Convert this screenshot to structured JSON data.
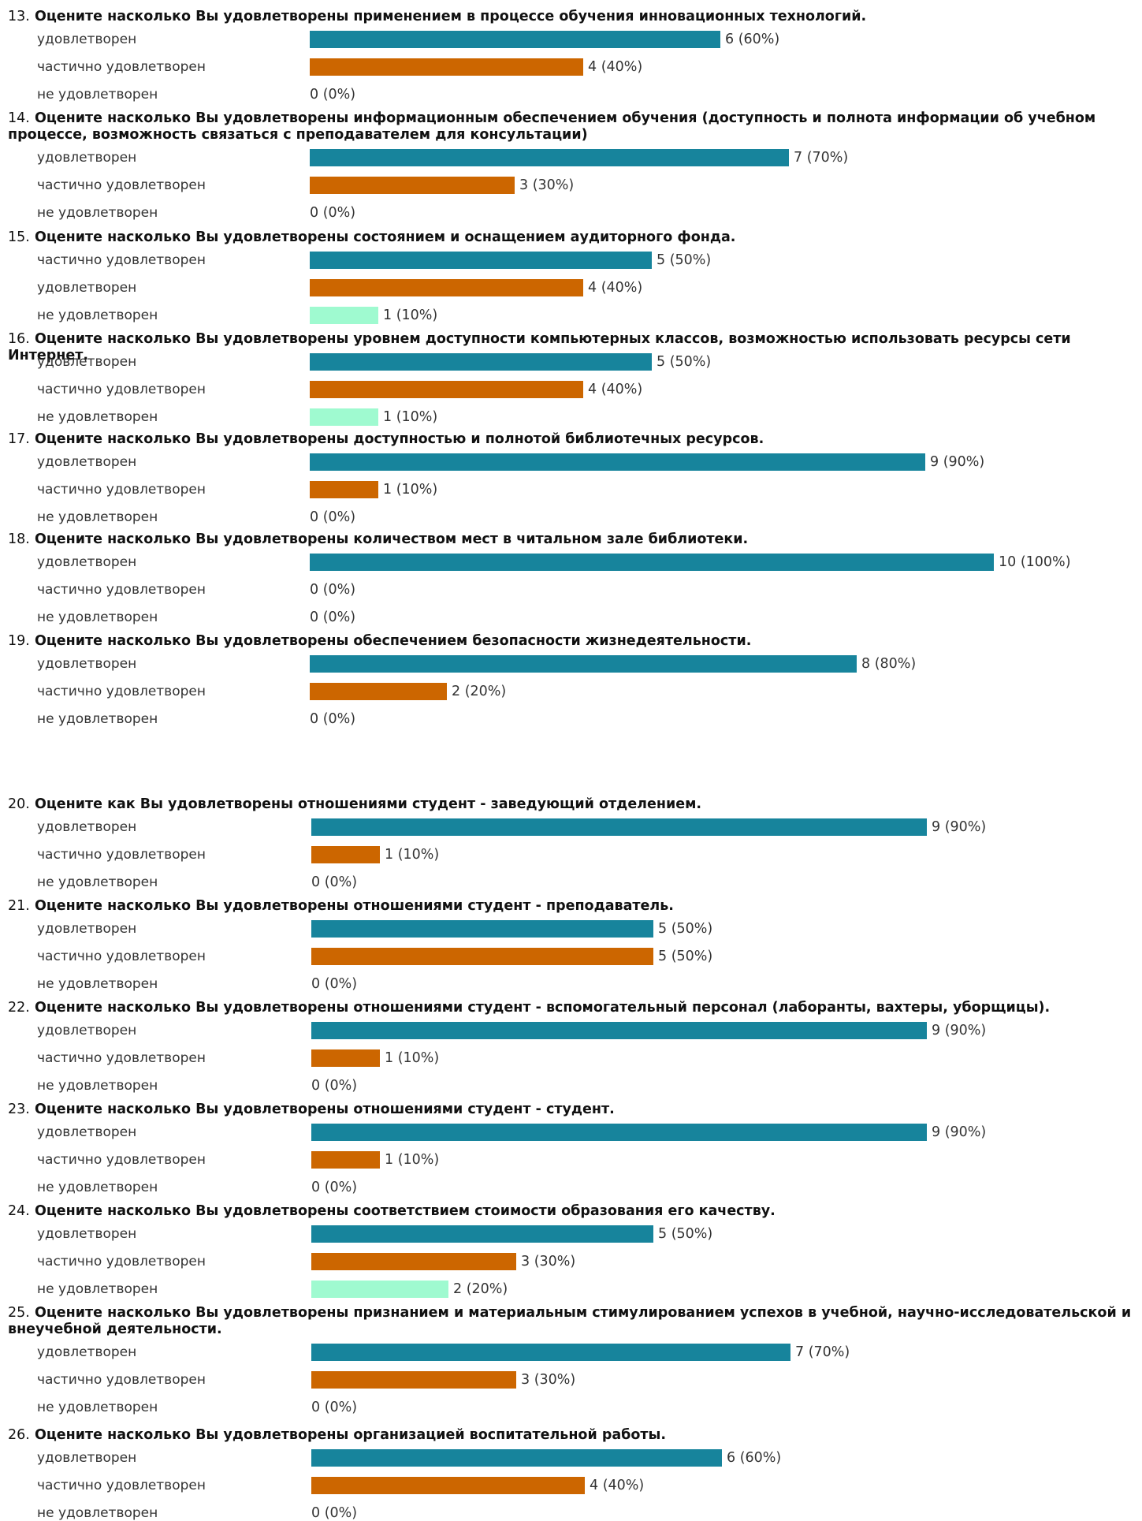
{
  "colors": {
    "bar1": "#17849c",
    "bar2": "#cc6600",
    "bar3": "#9ffad0"
  },
  "chart_data": {
    "type": "bar",
    "orientation": "horizontal",
    "max_value": 10,
    "questions": [
      {
        "number": "13.",
        "title": "Оцените насколько Вы удовлетворены применением в процессе обучения инновационных технологий.",
        "title_lines": 1,
        "options": [
          {
            "label": "удовлетворен",
            "value": 6,
            "value_text": "6 (60%)"
          },
          {
            "label": "частично удовлетворен",
            "value": 4,
            "value_text": "4 (40%)"
          },
          {
            "label": "не удовлетворен",
            "value": 0,
            "value_text": "0 (0%)"
          }
        ]
      },
      {
        "number": "14.",
        "title": "Оцените насколько Вы удовлетворены информационным обеспечением обучения (доступность и полнота информации об учебном процессе, возможность связаться с преподавателем для консультации)",
        "title_lines": 2,
        "options": [
          {
            "label": "удовлетворен",
            "value": 7,
            "value_text": "7 (70%)"
          },
          {
            "label": "частично удовлетворен",
            "value": 3,
            "value_text": "3 (30%)"
          },
          {
            "label": "не удовлетворен",
            "value": 0,
            "value_text": "0 (0%)"
          }
        ]
      },
      {
        "number": "15.",
        "title": "Оцените насколько Вы удовлетворены состоянием и оснащением аудиторного фонда.",
        "title_lines": 1,
        "options": [
          {
            "label": "частично удовлетворен",
            "value": 5,
            "value_text": "5 (50%)"
          },
          {
            "label": "удовлетворен",
            "value": 4,
            "value_text": "4 (40%)"
          },
          {
            "label": "не удовлетворен",
            "value": 1,
            "value_text": "1 (10%)"
          }
        ]
      },
      {
        "number": "16.",
        "title": "Оцените насколько Вы удовлетворены уровнем доступности компьютерных классов, возможностью использовать ресурсы сети Интернет.",
        "title_lines": 1,
        "options": [
          {
            "label": "удовлетворен",
            "value": 5,
            "value_text": "5 (50%)"
          },
          {
            "label": "частично удовлетворен",
            "value": 4,
            "value_text": "4 (40%)"
          },
          {
            "label": "не удовлетворен",
            "value": 1,
            "value_text": "1 (10%)"
          }
        ]
      },
      {
        "number": "17.",
        "title": "Оцените насколько Вы удовлетворены доступностью и полнотой библиотечных ресурсов.",
        "title_lines": 1,
        "options": [
          {
            "label": "удовлетворен",
            "value": 9,
            "value_text": "9 (90%)"
          },
          {
            "label": "частично удовлетворен",
            "value": 1,
            "value_text": "1 (10%)"
          },
          {
            "label": "не удовлетворен",
            "value": 0,
            "value_text": "0 (0%)"
          }
        ]
      },
      {
        "number": "18.",
        "title": "Оцените насколько Вы удовлетворены количеством мест в читальном зале библиотеки.",
        "title_lines": 1,
        "options": [
          {
            "label": "удовлетворен",
            "value": 10,
            "value_text": "10 (100%)"
          },
          {
            "label": "частично удовлетворен",
            "value": 0,
            "value_text": "0 (0%)"
          },
          {
            "label": "не удовлетворен",
            "value": 0,
            "value_text": "0 (0%)"
          }
        ]
      },
      {
        "number": "19.",
        "title": "Оцените насколько Вы удовлетворены обеспечением безопасности жизнедеятельности.",
        "title_lines": 1,
        "options": [
          {
            "label": "удовлетворен",
            "value": 8,
            "value_text": "8 (80%)"
          },
          {
            "label": "частично удовлетворен",
            "value": 2,
            "value_text": "2 (20%)"
          },
          {
            "label": "не удовлетворен",
            "value": 0,
            "value_text": "0 (0%)"
          }
        ]
      },
      {
        "number": "20.",
        "title": "Оцените как Вы удовлетворены отношениями студент - заведующий отделением.",
        "title_lines": 1,
        "options": [
          {
            "label": "удовлетворен",
            "value": 9,
            "value_text": "9 (90%)"
          },
          {
            "label": "частично удовлетворен",
            "value": 1,
            "value_text": "1 (10%)"
          },
          {
            "label": "не удовлетворен",
            "value": 0,
            "value_text": "0 (0%)"
          }
        ]
      },
      {
        "number": "21.",
        "title": "Оцените насколько Вы удовлетворены отношениями студент - преподаватель.",
        "title_lines": 1,
        "options": [
          {
            "label": "удовлетворен",
            "value": 5,
            "value_text": "5 (50%)"
          },
          {
            "label": "частично удовлетворен",
            "value": 5,
            "value_text": "5 (50%)"
          },
          {
            "label": "не удовлетворен",
            "value": 0,
            "value_text": "0 (0%)"
          }
        ]
      },
      {
        "number": "22.",
        "title": "Оцените насколько Вы удовлетворены отношениями студент - вспомогательный персонал (лаборанты, вахтеры, уборщицы).",
        "title_lines": 1,
        "options": [
          {
            "label": "удовлетворен",
            "value": 9,
            "value_text": "9 (90%)"
          },
          {
            "label": "частично удовлетворен",
            "value": 1,
            "value_text": "1 (10%)"
          },
          {
            "label": "не удовлетворен",
            "value": 0,
            "value_text": "0 (0%)"
          }
        ]
      },
      {
        "number": "23.",
        "title": "Оцените насколько Вы удовлетворены отношениями студент - студент.",
        "title_lines": 1,
        "options": [
          {
            "label": "удовлетворен",
            "value": 9,
            "value_text": "9 (90%)"
          },
          {
            "label": "частично удовлетворен",
            "value": 1,
            "value_text": "1 (10%)"
          },
          {
            "label": "не удовлетворен",
            "value": 0,
            "value_text": "0 (0%)"
          }
        ]
      },
      {
        "number": "24.",
        "title": "Оцените насколько Вы удовлетворены соответствием стоимости образования его качеству.",
        "title_lines": 1,
        "options": [
          {
            "label": "удовлетворен",
            "value": 5,
            "value_text": "5 (50%)"
          },
          {
            "label": "частично удовлетворен",
            "value": 3,
            "value_text": "3 (30%)"
          },
          {
            "label": "не удовлетворен",
            "value": 2,
            "value_text": "2 (20%)"
          }
        ]
      },
      {
        "number": "25.",
        "title": "Оцените насколько Вы удовлетворены признанием и материальным стимулированием успехов в учебной, научно-исследовательской и внеучебной деятельности.",
        "title_lines": 2,
        "options": [
          {
            "label": "удовлетворен",
            "value": 7,
            "value_text": "7 (70%)"
          },
          {
            "label": "частично удовлетворен",
            "value": 3,
            "value_text": "3 (30%)"
          },
          {
            "label": "не удовлетворен",
            "value": 0,
            "value_text": "0 (0%)"
          }
        ]
      },
      {
        "number": "26.",
        "title": "Оцените насколько Вы удовлетворены организацией воспитательной работы.",
        "title_lines": 1,
        "options": [
          {
            "label": "удовлетворен",
            "value": 6,
            "value_text": "6 (60%)"
          },
          {
            "label": "частично удовлетворен",
            "value": 4,
            "value_text": "4 (40%)"
          },
          {
            "label": "не удовлетворен",
            "value": 0,
            "value_text": "0 (0%)"
          }
        ]
      }
    ]
  }
}
